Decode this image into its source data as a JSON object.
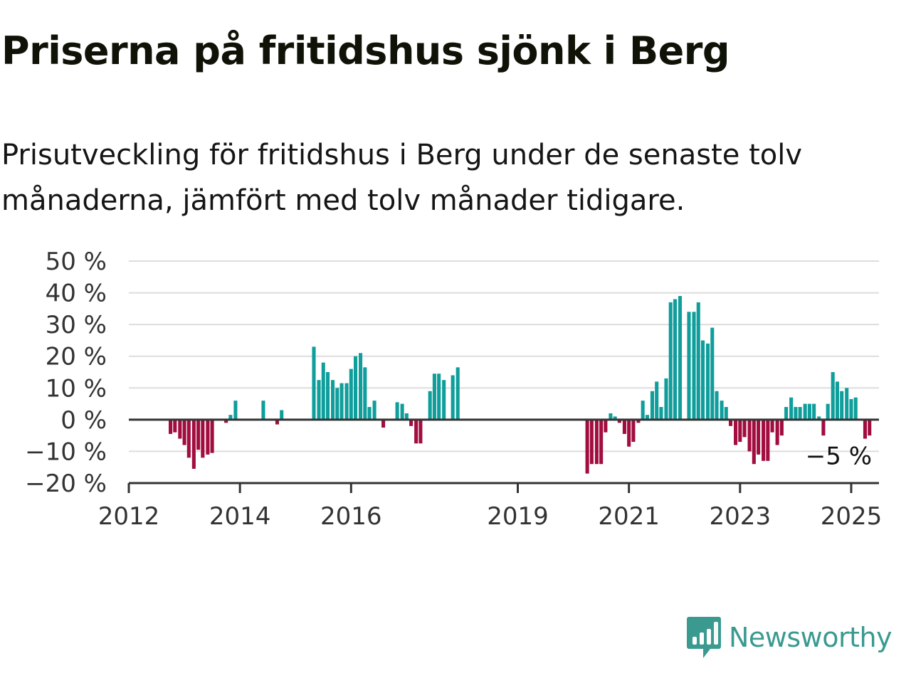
{
  "title": "Priserna på fritidshus sjönk i Berg",
  "subtitle": "Prisutveckling för fritidshus i Berg under de senaste tolv månaderna, jämfört med tolv månader tidigare.",
  "brand": {
    "name": "Newsworthy",
    "icon": "newsworthy-logo-icon"
  },
  "colors": {
    "positive": "#0f9e9b",
    "negative": "#a10d3f",
    "grid": "#dddddd",
    "axis": "#333333",
    "brand": "#3a9a90"
  },
  "chart_data": {
    "type": "bar",
    "ylim": [
      -20,
      50
    ],
    "yticks": [
      50,
      40,
      30,
      20,
      10,
      0,
      -10,
      -20
    ],
    "ytick_labels": [
      "50 %",
      "40 %",
      "30 %",
      "20 %",
      "10 %",
      "0 %",
      "−10 %",
      "−20 %"
    ],
    "xlim": [
      2012.0,
      2025.5
    ],
    "xtick_labels": [
      "2012",
      "2014",
      "2016",
      "2019",
      "2021",
      "2023",
      "2025"
    ],
    "xtick_values": [
      2012,
      2014,
      2016,
      2019,
      2021,
      2023,
      2025
    ],
    "grid": true,
    "last_label": "−5 %",
    "series": [
      {
        "x": [
          2012.75,
          2012.83,
          2012.92,
          2013.0,
          2013.08,
          2013.17,
          2013.25,
          2013.33,
          2013.42,
          2013.5,
          2013.58,
          2013.67,
          2013.75,
          2013.83,
          2013.92,
          2014.0,
          2014.08,
          2014.17,
          2014.25,
          2014.33,
          2014.42,
          2014.5,
          2014.58,
          2014.67,
          2014.75,
          2014.83,
          2014.92,
          2015.0,
          2015.08,
          2015.17,
          2015.25,
          2015.33,
          2015.42,
          2015.5,
          2015.58,
          2015.67,
          2015.75,
          2015.83,
          2015.92,
          2016.0,
          2016.08,
          2016.17,
          2016.25,
          2016.33,
          2016.42,
          2016.5,
          2016.58,
          2016.67,
          2016.75,
          2016.83,
          2016.92,
          2017.0,
          2017.08,
          2017.17,
          2017.25,
          2017.33,
          2017.42,
          2017.5,
          2017.58,
          2017.67,
          2017.75,
          2017.83,
          2017.92,
          2018.0,
          2018.08,
          2020.25,
          2020.33,
          2020.42,
          2020.5,
          2020.58,
          2020.67,
          2020.75,
          2020.83,
          2020.92,
          2021.0,
          2021.08,
          2021.17,
          2021.25,
          2021.33,
          2021.42,
          2021.5,
          2021.58,
          2021.67,
          2021.75,
          2021.83,
          2021.92,
          2022.0,
          2022.08,
          2022.17,
          2022.25,
          2022.33,
          2022.42,
          2022.5,
          2022.58,
          2022.67,
          2022.75,
          2022.83,
          2022.92,
          2023.0,
          2023.08,
          2023.17,
          2023.25,
          2023.33,
          2023.42,
          2023.5,
          2023.58,
          2023.67,
          2023.75,
          2023.83,
          2023.92,
          2024.0,
          2024.08,
          2024.17,
          2024.25,
          2024.33,
          2024.42,
          2024.5,
          2024.58,
          2024.67,
          2024.75,
          2024.83,
          2024.92,
          2025.0,
          2025.08,
          2025.17,
          2025.25,
          2025.33
        ],
        "values": [
          -4.5,
          -4,
          -6,
          -8,
          -12,
          -15.5,
          -9.5,
          -12,
          -11,
          -10.5,
          0,
          0,
          -1,
          1.5,
          6,
          0,
          0,
          0,
          0,
          0,
          6,
          0,
          0,
          -1.5,
          3,
          0,
          0,
          0,
          0,
          0,
          0,
          23,
          12.5,
          18,
          15,
          12.5,
          10,
          11.5,
          11.5,
          16,
          20,
          21,
          16.5,
          4,
          6,
          0,
          -2.5,
          0,
          0,
          5.5,
          5,
          2,
          -2,
          -7.5,
          -7.5,
          0,
          9,
          14.5,
          14.5,
          12.5,
          0,
          14,
          16.5,
          0,
          0,
          -17,
          -14,
          -14,
          -14,
          -4,
          2,
          1,
          -1,
          -4.5,
          -8.5,
          -7,
          -1,
          6,
          1.5,
          9,
          12,
          4,
          13,
          37,
          38,
          39,
          0,
          34,
          34,
          37,
          25,
          24,
          29,
          9,
          6,
          4,
          -2,
          -8,
          -7,
          -5.5,
          -10,
          -14,
          -11,
          -13,
          -13,
          -4,
          -8,
          -5,
          4,
          7,
          4,
          4,
          5,
          5,
          5,
          1,
          -5,
          5,
          15,
          12,
          9,
          10,
          6.5,
          7,
          0,
          -6,
          -5
        ]
      }
    ]
  }
}
